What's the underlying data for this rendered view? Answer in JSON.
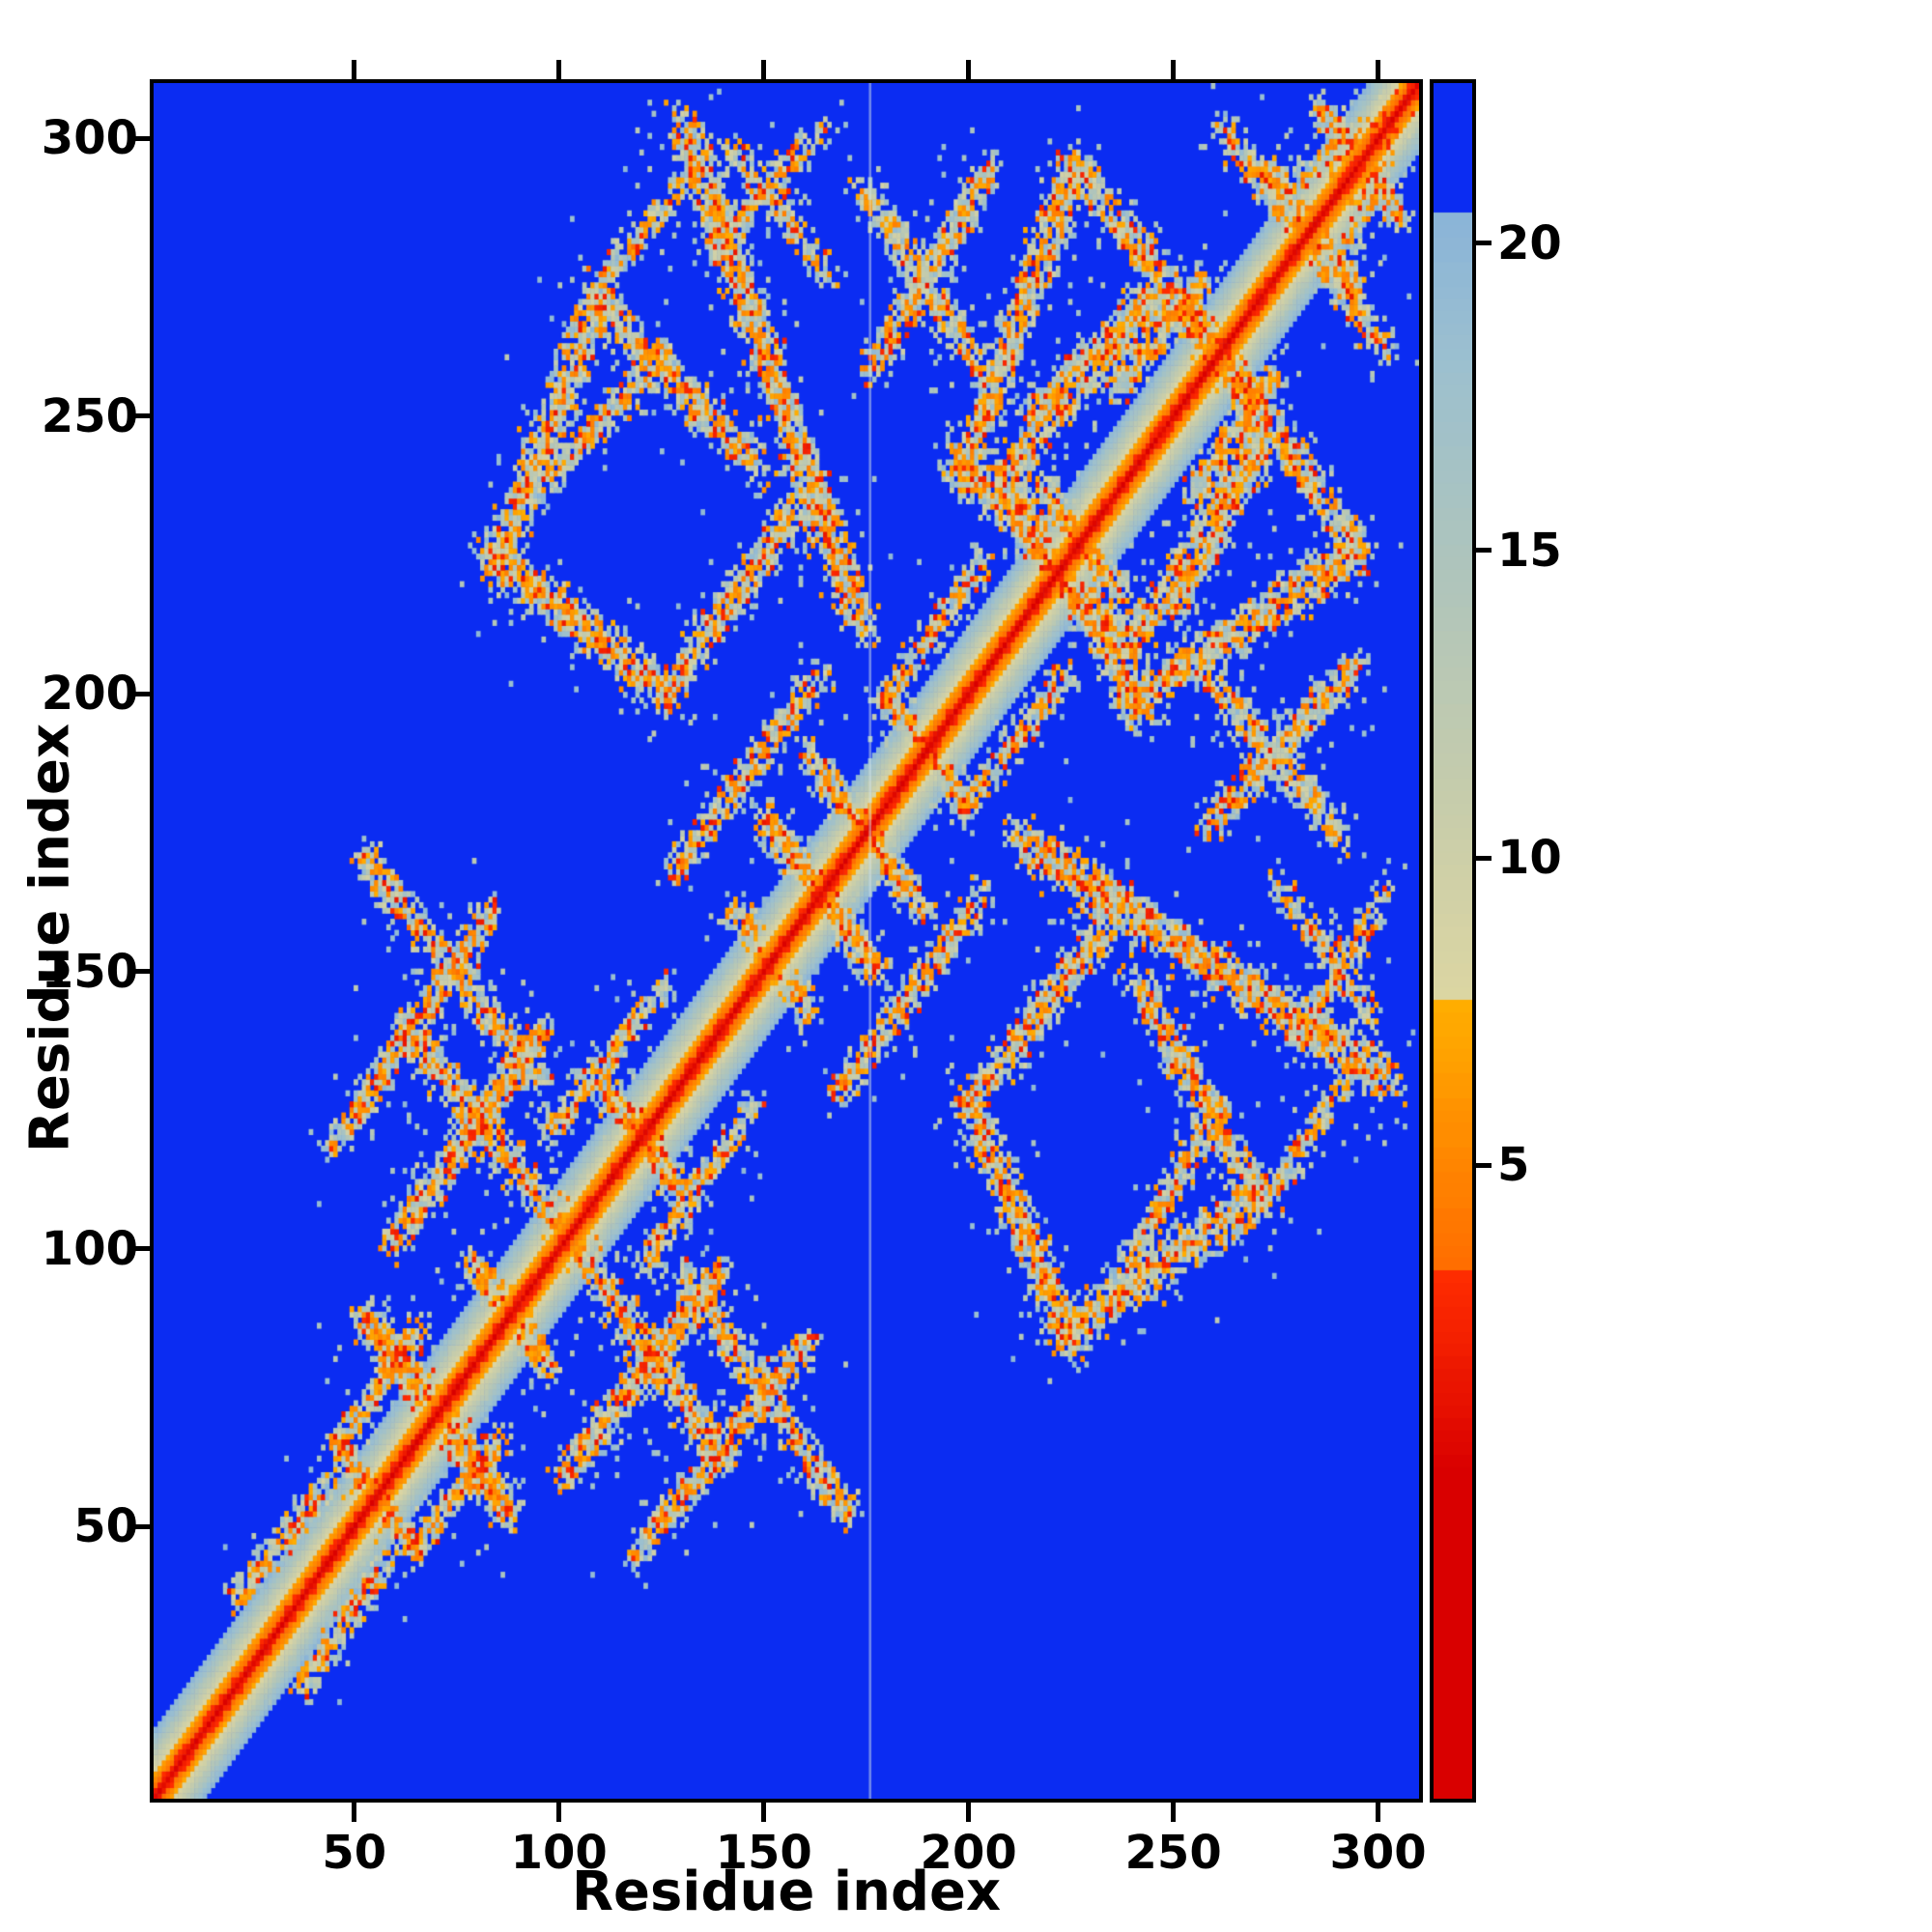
{
  "chart_data": {
    "type": "heatmap",
    "title": "",
    "xlabel": "Residue index",
    "ylabel": "Residue index",
    "x_range": [
      1,
      310
    ],
    "y_range": [
      1,
      310
    ],
    "xticks": [
      50,
      100,
      150,
      200,
      250,
      300
    ],
    "yticks": [
      50,
      100,
      150,
      200,
      250,
      300
    ],
    "grid": false,
    "legend": "colorbar-right",
    "colorbar": {
      "ticks": [
        5,
        10,
        15,
        20
      ],
      "value_top": 22.6,
      "value_bottom": -5.3,
      "colormap": {
        "background_hex": "#0b2cf2",
        "blue_above": 20.5,
        "red_max": 3.2,
        "orange_max": 7.8,
        "red_hex": [
          "#d90000",
          "#ff2d00"
        ],
        "orange_hex": [
          "#ff6a00",
          "#ffb000"
        ],
        "gray_stops": [
          [
            7.8,
            "#dcd6a2"
          ],
          [
            11,
            "#c6ccab"
          ],
          [
            15,
            "#adc4bd"
          ],
          [
            18,
            "#9cc0cf"
          ],
          [
            20.5,
            "#8ab4d8"
          ]
        ]
      }
    },
    "matrix": {
      "n_residues": 310,
      "description": "Symmetric inter-residue distance map (contact map) of a ~310-residue two-domain protein. Red diagonal (zero self-distance) flanked by orange then pale gray band; speckled gray/orange off-diagonal clusters mark tertiary contacts between secondary-structure elements; deep blue = distances beyond ~20.5. A faint pale vertical line (chain break artifact) crosses the map near residue 176.",
      "diagonal_band": {
        "half_width": 13,
        "step": 1.62
      },
      "chain_break_column": 176,
      "contacts": [
        {
          "p": [
            45,
            65,
            65,
            45
          ],
          "w": 2.5,
          "d": 0.9
        },
        {
          "p": [
            78,
            98,
            98,
            78
          ],
          "w": 2.5,
          "d": 0.9
        },
        {
          "p": [
            110,
            130,
            130,
            110
          ],
          "w": 2.5,
          "d": 0.8
        },
        {
          "p": [
            142,
            162,
            162,
            142
          ],
          "w": 2.5,
          "d": 0.8
        },
        {
          "p": [
            180,
            200,
            200,
            180
          ],
          "w": 2.5,
          "d": 0.8
        },
        {
          "p": [
            218,
            238,
            238,
            218
          ],
          "w": 2.5,
          "d": 0.8
        },
        {
          "p": [
            252,
            272,
            272,
            252
          ],
          "w": 2.5,
          "d": 0.8
        },
        {
          "p": [
            286,
            306,
            306,
            286
          ],
          "w": 2.5,
          "d": 0.8
        },
        {
          "p": [
            20,
            36,
            44,
            58
          ],
          "w": 2.5,
          "d": 1.0
        },
        {
          "p": [
            48,
            66,
            66,
            86
          ],
          "w": 2.5,
          "d": 1.0
        },
        {
          "p": [
            96,
            120,
            126,
            148
          ],
          "w": 2.5,
          "d": 0.9
        },
        {
          "p": [
            128,
            168,
            164,
            204
          ],
          "w": 2.8,
          "d": 0.9
        },
        {
          "p": [
            178,
            198,
            204,
            224
          ],
          "w": 2.5,
          "d": 0.9
        },
        {
          "p": [
            236,
            254,
            258,
            276
          ],
          "w": 2.5,
          "d": 0.9
        },
        {
          "p": [
            280,
            292,
            306,
            308
          ],
          "w": 2.2,
          "d": 0.8
        },
        {
          "p": [
            52,
            88,
            88,
            52
          ],
          "w": 3.0,
          "d": 1.1
        },
        {
          "p": [
            58,
            100,
            96,
            140
          ],
          "w": 3.2,
          "d": 1.1
        },
        {
          "p": [
            62,
            140,
            100,
            104
          ],
          "w": 3.2,
          "d": 1.1
        },
        {
          "p": [
            44,
            118,
            84,
            162
          ],
          "w": 3.0,
          "d": 0.9
        },
        {
          "p": [
            52,
            170,
            96,
            130
          ],
          "w": 3.0,
          "d": 0.9
        },
        {
          "p": [
            84,
            222,
            110,
            272
          ],
          "w": 3.5,
          "d": 1.1
        },
        {
          "p": [
            82,
            226,
            126,
            200
          ],
          "w": 3.5,
          "d": 1.1
        },
        {
          "p": [
            126,
            200,
            158,
            234
          ],
          "w": 3.2,
          "d": 1.0
        },
        {
          "p": [
            108,
            272,
            150,
            240
          ],
          "w": 3.2,
          "d": 1.0
        },
        {
          "p": [
            96,
            238,
            126,
            262
          ],
          "w": 2.8,
          "d": 0.8
        },
        {
          "p": [
            130,
            304,
            174,
            212
          ],
          "w": 3.6,
          "d": 1.3
        },
        {
          "p": [
            176,
            258,
            206,
            296
          ],
          "w": 3.0,
          "d": 0.9
        },
        {
          "p": [
            174,
            292,
            204,
            258
          ],
          "w": 3.0,
          "d": 0.9
        },
        {
          "p": [
            136,
            280,
            164,
            302
          ],
          "w": 2.6,
          "d": 0.7
        },
        {
          "p": [
            140,
            300,
            166,
            276
          ],
          "w": 2.6,
          "d": 0.7
        },
        {
          "p": [
            108,
            272,
            134,
            296
          ],
          "w": 2.4,
          "d": 0.6
        },
        {
          "p": [
            198,
            238,
            226,
            296
          ],
          "w": 3.5,
          "d": 1.1
        },
        {
          "p": [
            196,
            244,
            240,
            208
          ],
          "w": 3.5,
          "d": 1.1
        },
        {
          "p": [
            240,
            208,
            272,
            248
          ],
          "w": 3.2,
          "d": 1.0
        },
        {
          "p": [
            226,
            296,
            268,
            254
          ],
          "w": 3.2,
          "d": 1.0
        },
        {
          "p": [
            214,
            250,
            244,
            272
          ],
          "w": 2.8,
          "d": 0.8
        },
        {
          "p": [
            262,
            302,
            296,
            272
          ],
          "w": 3.0,
          "d": 1.0
        },
        {
          "p": [
            150,
            178,
            178,
            150
          ],
          "w": 2.8,
          "d": 0.9
        },
        {
          "p": [
            160,
            190,
            186,
            164
          ],
          "w": 2.6,
          "d": 0.8
        }
      ]
    }
  }
}
